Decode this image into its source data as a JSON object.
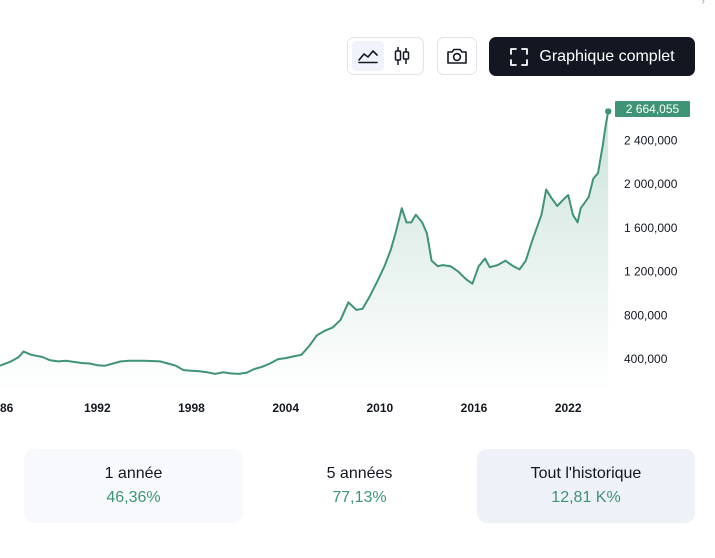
{
  "toolbar": {
    "chart_type_buttons": [
      {
        "icon": "area-chart-icon",
        "active": true
      },
      {
        "icon": "candlestick-icon",
        "active": false
      }
    ],
    "snapshot_icon": "camera-icon",
    "full_chart_label": "Graphique complet",
    "full_chart_icon": "fullscreen-icon"
  },
  "chart_data": {
    "type": "area",
    "color": "#3f9475",
    "title": "",
    "xlabel": "",
    "ylabel": "",
    "xlim": [
      1985.8,
      2024.6
    ],
    "ylim": [
      100000,
      2750000
    ],
    "x_ticks": [
      "86",
      "1992",
      "1998",
      "2004",
      "2010",
      "2016",
      "2022"
    ],
    "y_ticks": [
      "400,000",
      "800,000",
      "1 200,000",
      "1 600,000",
      "2 000,000",
      "2 400,000"
    ],
    "last_value_label": "2 664,055",
    "series": [
      {
        "x": [
          1985.8,
          1986.5,
          1987.0,
          1987.3,
          1987.8,
          1988.5,
          1989.0,
          1989.5,
          1990.0,
          1990.5,
          1991.0,
          1991.5,
          1992.0,
          1992.5,
          1993.0,
          1993.5,
          1994.0,
          1995.0,
          1996.0,
          1996.5,
          1997.0,
          1997.5,
          1998.0,
          1998.5,
          1999.0,
          1999.5,
          2000.0,
          2000.5,
          2001.0,
          2001.5,
          2002.0,
          2002.5,
          2003.0,
          2003.5,
          2004.0,
          2004.5,
          2005.0,
          2005.5,
          2006.0,
          2006.5,
          2007.0,
          2007.5,
          2008.0,
          2008.5,
          2008.9,
          2009.3,
          2009.8,
          2010.3,
          2010.7,
          2011.0,
          2011.4,
          2011.7,
          2012.0,
          2012.3,
          2012.7,
          2013.0,
          2013.3,
          2013.7,
          2014.0,
          2014.5,
          2015.0,
          2015.5,
          2015.9,
          2016.3,
          2016.7,
          2017.0,
          2017.5,
          2018.0,
          2018.5,
          2018.9,
          2019.3,
          2019.7,
          2020.0,
          2020.3,
          2020.6,
          2020.9,
          2021.3,
          2021.7,
          2022.0,
          2022.3,
          2022.6,
          2022.8,
          2023.0,
          2023.3,
          2023.6,
          2023.9,
          2024.2,
          2024.4,
          2024.55
        ],
        "values": [
          340000,
          380000,
          420000,
          470000,
          440000,
          420000,
          390000,
          380000,
          385000,
          375000,
          365000,
          360000,
          345000,
          340000,
          360000,
          380000,
          385000,
          385000,
          380000,
          360000,
          340000,
          300000,
          295000,
          290000,
          280000,
          265000,
          280000,
          270000,
          265000,
          275000,
          310000,
          330000,
          360000,
          400000,
          410000,
          425000,
          440000,
          520000,
          620000,
          660000,
          690000,
          760000,
          920000,
          850000,
          860000,
          960000,
          1100000,
          1250000,
          1400000,
          1550000,
          1780000,
          1650000,
          1650000,
          1720000,
          1650000,
          1550000,
          1300000,
          1250000,
          1260000,
          1250000,
          1200000,
          1130000,
          1090000,
          1250000,
          1320000,
          1240000,
          1260000,
          1300000,
          1250000,
          1220000,
          1300000,
          1480000,
          1600000,
          1720000,
          1950000,
          1880000,
          1800000,
          1860000,
          1900000,
          1720000,
          1650000,
          1780000,
          1820000,
          1880000,
          2050000,
          2100000,
          2350000,
          2550000,
          2664055
        ]
      }
    ]
  },
  "periods": [
    {
      "label": "1 année",
      "value": "46,36%"
    },
    {
      "label": "5 années",
      "value": "77,13%"
    },
    {
      "label": "Tout l'historique",
      "value": "12,81 K%"
    }
  ]
}
